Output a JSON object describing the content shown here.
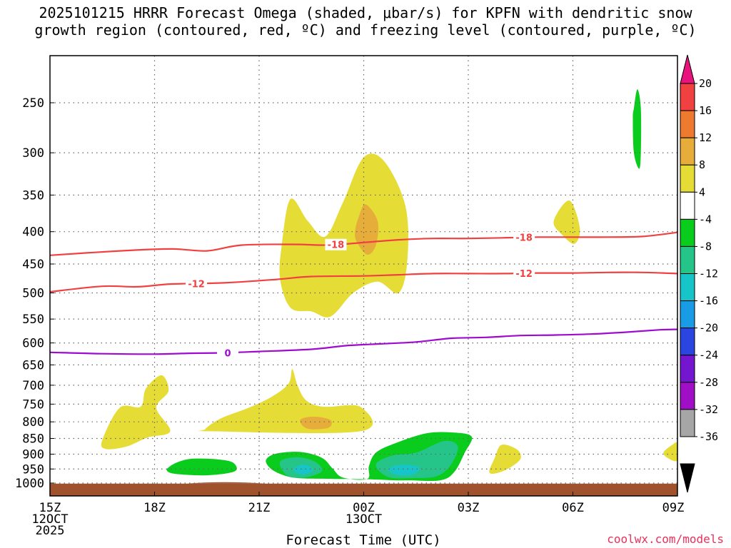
{
  "title": {
    "line1": "2025101215 HRRR Forecast Omega (shaded, μbar/s) for KPFN with dendritic snow",
    "line2": "growth region (contoured, red, ºC) and freezing level (contoured, purple, ºC)"
  },
  "xlabel": "Forecast Time (UTC)",
  "credit": "coolwx.com/models",
  "chart_data": {
    "type": "time-height cross section",
    "title": "2025101215 HRRR Forecast Omega (shaded, μbar/s) for KPFN with dendritic snow growth region (contoured, red, ºC) and freezing level (contoured, purple, ºC)",
    "xlabel": "Forecast Time (UTC)",
    "ylabel": "",
    "x_range_hours": [
      0,
      18
    ],
    "y_range_mb": [
      200,
      1030
    ],
    "y_scale": "log-pressure",
    "grid": true,
    "x_ticks": [
      {
        "hour": 0,
        "lines": [
          "15Z",
          "12OCT",
          "2025"
        ]
      },
      {
        "hour": 3,
        "lines": [
          "18Z"
        ]
      },
      {
        "hour": 6,
        "lines": [
          "21Z"
        ]
      },
      {
        "hour": 9,
        "lines": [
          "00Z",
          "13OCT"
        ]
      },
      {
        "hour": 12,
        "lines": [
          "03Z"
        ]
      },
      {
        "hour": 15,
        "lines": [
          "06Z"
        ]
      },
      {
        "hour": 18,
        "lines": [
          "09Z"
        ]
      }
    ],
    "y_ticks": [
      250,
      300,
      350,
      400,
      450,
      500,
      550,
      600,
      650,
      700,
      750,
      800,
      850,
      900,
      950,
      1000
    ],
    "colorbar": {
      "unit": "μbar/s",
      "labels": [
        "20",
        "16",
        "12",
        "8",
        "4",
        "-4",
        "-8",
        "-12",
        "-16",
        "-20",
        "-24",
        "-28",
        "-32",
        "-36"
      ],
      "bins": [
        {
          "lo": 20,
          "hi": 24,
          "color": "#e8137d"
        },
        {
          "lo": 16,
          "hi": 20,
          "color": "#f04040"
        },
        {
          "lo": 12,
          "hi": 16,
          "color": "#ee7a2f"
        },
        {
          "lo": 8,
          "hi": 12,
          "color": "#e7ad3a"
        },
        {
          "lo": 4,
          "hi": 8,
          "color": "#e6dc36"
        },
        {
          "lo": -4,
          "hi": 4,
          "color": "#ffffff"
        },
        {
          "lo": -8,
          "hi": -4,
          "color": "#0acc1c"
        },
        {
          "lo": -12,
          "hi": -8,
          "color": "#25c58a"
        },
        {
          "lo": -16,
          "hi": -12,
          "color": "#17c5c9"
        },
        {
          "lo": -20,
          "hi": -16,
          "color": "#1a9be6"
        },
        {
          "lo": -24,
          "hi": -20,
          "color": "#2a45e0"
        },
        {
          "lo": -28,
          "hi": -24,
          "color": "#7416cf"
        },
        {
          "lo": -32,
          "hi": -28,
          "color": "#a00ec6"
        },
        {
          "lo": -36,
          "hi": -32,
          "color": "#a6a6a6"
        },
        {
          "lo": -40,
          "hi": -36,
          "color": "#000000"
        }
      ]
    },
    "contours": [
      {
        "name": "-18",
        "color": "#f04040",
        "label": "-18",
        "points": [
          [
            0,
            436
          ],
          [
            2,
            429
          ],
          [
            3.5,
            426
          ],
          [
            4.5,
            429
          ],
          [
            5.5,
            420
          ],
          [
            7,
            419
          ],
          [
            8,
            420
          ],
          [
            9,
            416
          ],
          [
            10,
            412
          ],
          [
            11,
            410
          ],
          [
            12,
            410
          ],
          [
            13,
            409
          ],
          [
            14,
            408
          ],
          [
            15,
            408
          ],
          [
            16,
            408
          ],
          [
            17,
            407
          ],
          [
            18,
            401
          ]
        ],
        "label_hours": [
          8.2,
          13.6
        ]
      },
      {
        "name": "-12",
        "color": "#f04040",
        "label": "-12",
        "points": [
          [
            0,
            498
          ],
          [
            1.5,
            488
          ],
          [
            2.5,
            489
          ],
          [
            3.5,
            484
          ],
          [
            5,
            482
          ],
          [
            6.5,
            476
          ],
          [
            7.5,
            471
          ],
          [
            9,
            470
          ],
          [
            10,
            468
          ],
          [
            11,
            466
          ],
          [
            12,
            466
          ],
          [
            13,
            466
          ],
          [
            14,
            465
          ],
          [
            15,
            465
          ],
          [
            16,
            464
          ],
          [
            17,
            464
          ],
          [
            18,
            466
          ]
        ],
        "label_hours": [
          4.2,
          13.6
        ]
      },
      {
        "name": "0",
        "color": "#9d0bd1",
        "label": "0",
        "points": [
          [
            0,
            621
          ],
          [
            1.5,
            624
          ],
          [
            3,
            625
          ],
          [
            4,
            623
          ],
          [
            5,
            622
          ],
          [
            6,
            619
          ],
          [
            7.5,
            614
          ],
          [
            8.5,
            606
          ],
          [
            9.5,
            602
          ],
          [
            10.5,
            598
          ],
          [
            11.5,
            590
          ],
          [
            12.5,
            588
          ],
          [
            13.5,
            584
          ],
          [
            14.5,
            583
          ],
          [
            15.5,
            581
          ],
          [
            16.5,
            577
          ],
          [
            17.5,
            572
          ],
          [
            18,
            571
          ]
        ],
        "label_hours": [
          5.1
        ]
      }
    ],
    "omega_regions": [
      {
        "value_range": "4 to 8",
        "color": "#e6dc36",
        "points": [
          [
            6.6,
            475
          ],
          [
            6.65,
            420
          ],
          [
            6.9,
            355
          ],
          [
            7.4,
            385
          ],
          [
            7.9,
            407
          ],
          [
            8.4,
            360
          ],
          [
            9,
            305
          ],
          [
            9.6,
            310
          ],
          [
            10.2,
            365
          ],
          [
            10.25,
            445
          ],
          [
            10.0,
            500
          ],
          [
            9.4,
            480
          ],
          [
            8.7,
            500
          ],
          [
            8.05,
            545
          ],
          [
            7.5,
            535
          ],
          [
            6.9,
            528
          ]
        ]
      },
      {
        "value_range": "8 to 12",
        "color": "#e7ad3a",
        "points": [
          [
            8.75,
            400
          ],
          [
            8.85,
            380
          ],
          [
            9.05,
            362
          ],
          [
            9.4,
            385
          ],
          [
            9.35,
            420
          ],
          [
            9.1,
            435
          ],
          [
            8.8,
            415
          ]
        ]
      },
      {
        "value_range": "4 to 8",
        "color": "#e6dc36",
        "points": [
          [
            1.5,
            855
          ],
          [
            2.0,
            760
          ],
          [
            2.6,
            757
          ],
          [
            2.75,
            709
          ],
          [
            3.2,
            675
          ],
          [
            3.4,
            715
          ],
          [
            3.05,
            760
          ],
          [
            3.45,
            828
          ],
          [
            2.8,
            847
          ],
          [
            2.2,
            875
          ],
          [
            1.6,
            883
          ]
        ]
      },
      {
        "value_range": "4 to 8",
        "color": "#e6dc36",
        "points": [
          [
            4.45,
            822
          ],
          [
            4.9,
            790
          ],
          [
            5.7,
            760
          ],
          [
            6.4,
            728
          ],
          [
            6.85,
            695
          ],
          [
            6.95,
            660
          ],
          [
            7.1,
            700
          ],
          [
            7.35,
            740
          ],
          [
            7.85,
            757
          ],
          [
            8.9,
            757
          ],
          [
            8.9,
            828
          ],
          [
            4.6,
            828
          ]
        ]
      },
      {
        "value_range": "8 to 12",
        "color": "#e7ad3a",
        "points": [
          [
            7.2,
            792
          ],
          [
            7.6,
            785
          ],
          [
            8.05,
            795
          ],
          [
            8.0,
            817
          ],
          [
            7.5,
            822
          ],
          [
            7.25,
            812
          ]
        ]
      },
      {
        "value_range": "-4 to -8",
        "color": "#0acc1c",
        "points": [
          [
            3.45,
            940
          ],
          [
            3.7,
            925
          ],
          [
            4.1,
            915
          ],
          [
            4.8,
            917
          ],
          [
            5.25,
            928
          ],
          [
            5.3,
            958
          ],
          [
            4.5,
            972
          ],
          [
            3.6,
            967
          ],
          [
            3.35,
            955
          ]
        ]
      },
      {
        "value_range": "-4 to -8",
        "color": "#0acc1c",
        "points": [
          [
            6.2,
            918
          ],
          [
            6.5,
            898
          ],
          [
            7.2,
            893
          ],
          [
            7.8,
            912
          ],
          [
            8.1,
            947
          ],
          [
            8.4,
            980
          ],
          [
            9.1,
            985
          ],
          [
            9.15,
            940
          ],
          [
            9.35,
            895
          ],
          [
            9.9,
            865
          ],
          [
            10.8,
            834
          ],
          [
            11.6,
            832
          ],
          [
            12.1,
            845
          ],
          [
            11.9,
            895
          ],
          [
            11.6,
            960
          ],
          [
            11.2,
            990
          ],
          [
            10.3,
            990
          ],
          [
            9.9,
            990
          ],
          [
            9.1,
            986
          ],
          [
            8.2,
            985
          ],
          [
            7.1,
            982
          ],
          [
            6.6,
            967
          ],
          [
            6.3,
            945
          ]
        ]
      },
      {
        "value_range": "-8 to -12",
        "color": "#25c58a",
        "points": [
          [
            6.6,
            925
          ],
          [
            7.1,
            910
          ],
          [
            7.6,
            925
          ],
          [
            7.8,
            958
          ],
          [
            7.3,
            980
          ],
          [
            6.8,
            972
          ]
        ]
      },
      {
        "value_range": "-12 to -16",
        "color": "#17c5c9",
        "points": [
          [
            7.0,
            948
          ],
          [
            7.3,
            935
          ],
          [
            7.55,
            953
          ],
          [
            7.3,
            970
          ],
          [
            7.05,
            962
          ]
        ]
      },
      {
        "value_range": "-8 to -12",
        "color": "#25c58a",
        "points": [
          [
            9.35,
            935
          ],
          [
            9.8,
            905
          ],
          [
            10.5,
            895
          ],
          [
            11.3,
            858
          ],
          [
            11.7,
            875
          ],
          [
            11.5,
            935
          ],
          [
            11.1,
            975
          ],
          [
            10.4,
            982
          ],
          [
            9.7,
            978
          ]
        ]
      },
      {
        "value_range": "-12 to -16",
        "color": "#17c5c9",
        "points": [
          [
            9.7,
            950
          ],
          [
            10.1,
            935
          ],
          [
            10.6,
            945
          ],
          [
            10.4,
            970
          ],
          [
            9.95,
            970
          ]
        ]
      },
      {
        "value_range": "-4 to -8",
        "color": "#0acc1c",
        "points": [
          [
            16.75,
            255
          ],
          [
            16.85,
            238
          ],
          [
            16.95,
            255
          ],
          [
            16.95,
            300
          ],
          [
            16.9,
            318
          ],
          [
            16.75,
            300
          ],
          [
            16.72,
            265
          ]
        ]
      },
      {
        "value_range": "4 to 8",
        "color": "#e6dc36",
        "points": [
          [
            14.45,
            385
          ],
          [
            14.9,
            357
          ],
          [
            15.2,
            395
          ],
          [
            15.05,
            418
          ],
          [
            14.7,
            405
          ]
        ]
      },
      {
        "value_range": "4 to 8",
        "color": "#e6dc36",
        "points": [
          [
            12.6,
            960
          ],
          [
            12.75,
            915
          ],
          [
            12.95,
            870
          ],
          [
            13.4,
            885
          ],
          [
            13.5,
            915
          ],
          [
            13.2,
            945
          ],
          [
            12.8,
            965
          ]
        ]
      },
      {
        "value_range": "4 to 8",
        "color": "#e6dc36",
        "points": [
          [
            17.6,
            895
          ],
          [
            17.85,
            870
          ],
          [
            18,
            865
          ],
          [
            18,
            920
          ],
          [
            17.75,
            915
          ]
        ]
      }
    ],
    "terrain": {
      "color": "#a0522d",
      "top_mb": 1002
    }
  }
}
